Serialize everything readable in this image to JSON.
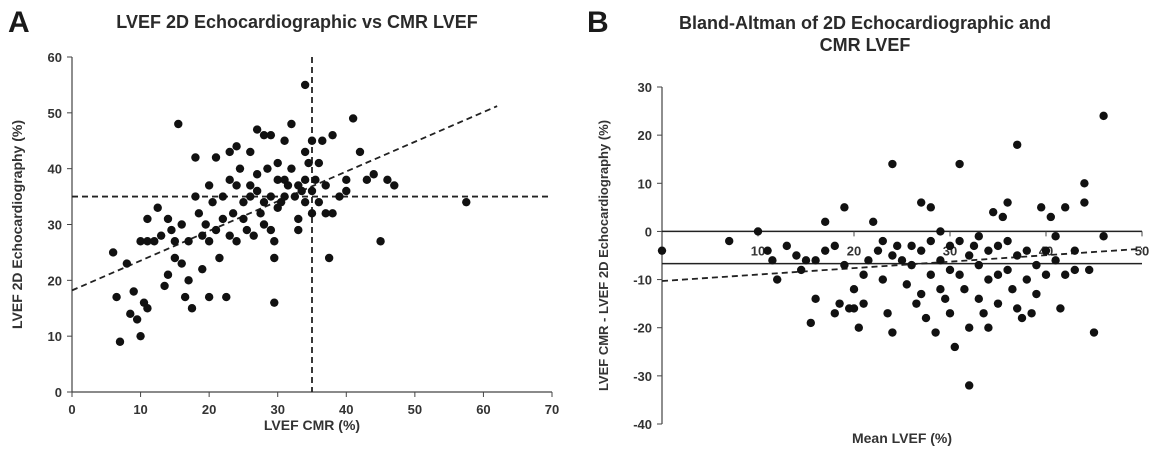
{
  "chart_data": [
    {
      "type": "scatter",
      "panel_label": "A",
      "title": "LVEF 2D Echocardiographic vs CMR LVEF",
      "xlabel": "LVEF CMR (%)",
      "ylabel": "LVEF 2D Echocardiography (%)",
      "xlim": [
        0,
        70
      ],
      "ylim": [
        0,
        60
      ],
      "xticks": [
        0,
        10,
        20,
        30,
        40,
        50,
        60,
        70
      ],
      "yticks": [
        0,
        10,
        20,
        30,
        40,
        50,
        60
      ],
      "grid": false,
      "reference_lines": [
        {
          "type": "vertical",
          "x": 35,
          "style": "dashed"
        },
        {
          "type": "horizontal",
          "y": 35,
          "style": "dashed"
        }
      ],
      "trendline": {
        "x1": 0,
        "y1": 18.2,
        "x2": 62,
        "y2": 51.2,
        "style": "dashed"
      },
      "series": [
        {
          "points": [
            [
              6,
              25
            ],
            [
              6.5,
              17
            ],
            [
              7,
              9
            ],
            [
              8,
              23
            ],
            [
              8.5,
              14
            ],
            [
              9,
              18
            ],
            [
              9.5,
              13
            ],
            [
              10,
              27
            ],
            [
              10,
              10
            ],
            [
              10.5,
              16
            ],
            [
              11,
              31
            ],
            [
              11,
              27
            ],
            [
              11,
              15
            ],
            [
              12,
              27
            ],
            [
              12.5,
              33
            ],
            [
              13,
              28
            ],
            [
              13.5,
              19
            ],
            [
              14,
              31
            ],
            [
              14,
              21
            ],
            [
              14.5,
              29
            ],
            [
              15,
              27
            ],
            [
              15,
              24
            ],
            [
              15.5,
              48
            ],
            [
              16,
              30
            ],
            [
              16,
              23
            ],
            [
              16.5,
              17
            ],
            [
              17,
              27
            ],
            [
              17,
              20
            ],
            [
              17.5,
              15
            ],
            [
              18,
              42
            ],
            [
              18,
              35
            ],
            [
              18.5,
              32
            ],
            [
              19,
              28
            ],
            [
              19,
              22
            ],
            [
              19.5,
              30
            ],
            [
              20,
              37
            ],
            [
              20,
              27
            ],
            [
              20,
              17
            ],
            [
              20.5,
              34
            ],
            [
              21,
              42
            ],
            [
              21,
              29
            ],
            [
              21.5,
              24
            ],
            [
              22,
              31
            ],
            [
              22,
              35
            ],
            [
              22.5,
              17
            ],
            [
              23,
              43
            ],
            [
              23,
              38
            ],
            [
              23,
              28
            ],
            [
              23.5,
              32
            ],
            [
              24,
              44
            ],
            [
              24,
              37
            ],
            [
              24,
              27
            ],
            [
              24.5,
              40
            ],
            [
              25,
              34
            ],
            [
              25,
              31
            ],
            [
              25.5,
              29
            ],
            [
              26,
              35
            ],
            [
              26,
              37
            ],
            [
              26,
              43
            ],
            [
              26.5,
              28
            ],
            [
              27,
              47
            ],
            [
              27,
              39
            ],
            [
              27,
              36
            ],
            [
              27.5,
              32
            ],
            [
              28,
              46
            ],
            [
              28,
              34
            ],
            [
              28,
              30
            ],
            [
              28.5,
              40
            ],
            [
              29,
              46
            ],
            [
              29,
              35
            ],
            [
              29,
              29
            ],
            [
              29.5,
              27
            ],
            [
              29.5,
              24
            ],
            [
              29.5,
              16
            ],
            [
              30,
              41
            ],
            [
              30,
              38
            ],
            [
              30,
              33
            ],
            [
              30.5,
              34
            ],
            [
              31,
              35
            ],
            [
              31,
              38
            ],
            [
              31,
              45
            ],
            [
              31.5,
              37
            ],
            [
              32,
              48
            ],
            [
              32,
              40
            ],
            [
              32.5,
              35
            ],
            [
              33,
              37
            ],
            [
              33,
              31
            ],
            [
              33,
              29
            ],
            [
              33.5,
              36
            ],
            [
              34,
              43
            ],
            [
              34,
              38
            ],
            [
              34,
              34
            ],
            [
              34,
              55
            ],
            [
              34.5,
              41
            ],
            [
              35,
              45
            ],
            [
              35,
              36
            ],
            [
              35,
              32
            ],
            [
              35.5,
              38
            ],
            [
              36,
              41
            ],
            [
              36,
              34
            ],
            [
              36.5,
              45
            ],
            [
              37,
              37
            ],
            [
              37,
              32
            ],
            [
              37.5,
              24
            ],
            [
              38,
              46
            ],
            [
              38,
              32
            ],
            [
              39,
              35
            ],
            [
              40,
              36
            ],
            [
              40,
              38
            ],
            [
              41,
              49
            ],
            [
              42,
              43
            ],
            [
              43,
              38
            ],
            [
              44,
              39
            ],
            [
              45,
              27
            ],
            [
              46,
              38
            ],
            [
              47,
              37
            ],
            [
              57.5,
              34
            ]
          ]
        }
      ]
    },
    {
      "type": "scatter",
      "panel_label": "B",
      "title": "Bland-Altman of 2D Echocardiographic and CMR LVEF",
      "xlabel": "Mean LVEF (%)",
      "ylabel": "LVEF CMR - LVEF 2D Echocardiography (%)",
      "xlim": [
        0,
        50
      ],
      "ylim": [
        -40,
        30
      ],
      "xticks": [
        10,
        20,
        30,
        40,
        50
      ],
      "yticks": [
        30,
        20,
        10,
        0,
        -10,
        -20,
        -30,
        -40
      ],
      "grid": false,
      "reference_lines": [
        {
          "type": "horizontal",
          "y": 0,
          "style": "solid"
        },
        {
          "type": "horizontal",
          "y": -6.7,
          "style": "solid"
        }
      ],
      "trendline": {
        "x1": 0,
        "y1": -10.3,
        "x2": 50,
        "y2": -3.6,
        "style": "dashed"
      },
      "series": [
        {
          "points": [
            [
              0,
              -4
            ],
            [
              7,
              -2
            ],
            [
              10,
              0
            ],
            [
              11,
              -4
            ],
            [
              11.5,
              -6
            ],
            [
              12,
              -10
            ],
            [
              13,
              -3
            ],
            [
              14,
              -5
            ],
            [
              14.5,
              -8
            ],
            [
              15,
              -6
            ],
            [
              15.5,
              -19
            ],
            [
              16,
              -14
            ],
            [
              16,
              -6
            ],
            [
              17,
              2
            ],
            [
              17,
              -4
            ],
            [
              18,
              -3
            ],
            [
              18,
              -17
            ],
            [
              18.5,
              -15
            ],
            [
              19,
              5
            ],
            [
              19,
              -7
            ],
            [
              19.5,
              -16
            ],
            [
              20,
              -12
            ],
            [
              20,
              -16
            ],
            [
              20.5,
              -20
            ],
            [
              21,
              -9
            ],
            [
              21,
              -15
            ],
            [
              21.5,
              -6
            ],
            [
              22,
              2
            ],
            [
              22.5,
              -4
            ],
            [
              23,
              -2
            ],
            [
              23,
              -10
            ],
            [
              23.5,
              -17
            ],
            [
              24,
              14
            ],
            [
              24,
              -5
            ],
            [
              24,
              -21
            ],
            [
              24.5,
              -3
            ],
            [
              25,
              -6
            ],
            [
              25.5,
              -11
            ],
            [
              26,
              -3
            ],
            [
              26,
              -7
            ],
            [
              26.5,
              -15
            ],
            [
              27,
              6
            ],
            [
              27,
              -4
            ],
            [
              27,
              -13
            ],
            [
              27.5,
              -18
            ],
            [
              28,
              5
            ],
            [
              28,
              -2
            ],
            [
              28,
              -9
            ],
            [
              28.5,
              -21
            ],
            [
              29,
              0
            ],
            [
              29,
              -6
            ],
            [
              29,
              -12
            ],
            [
              29.5,
              -14
            ],
            [
              30,
              -3
            ],
            [
              30,
              -8
            ],
            [
              30,
              -17
            ],
            [
              30.5,
              -24
            ],
            [
              31,
              14
            ],
            [
              31,
              -2
            ],
            [
              31,
              -9
            ],
            [
              31.5,
              -12
            ],
            [
              32,
              -32
            ],
            [
              32,
              -5
            ],
            [
              32,
              -20
            ],
            [
              32.5,
              -3
            ],
            [
              33,
              -1
            ],
            [
              33,
              -7
            ],
            [
              33,
              -14
            ],
            [
              33.5,
              -17
            ],
            [
              34,
              -4
            ],
            [
              34,
              -10
            ],
            [
              34,
              -20
            ],
            [
              34.5,
              4
            ],
            [
              35,
              -3
            ],
            [
              35,
              -9
            ],
            [
              35,
              -15
            ],
            [
              35.5,
              3
            ],
            [
              36,
              6
            ],
            [
              36,
              -2
            ],
            [
              36,
              -8
            ],
            [
              36.5,
              -12
            ],
            [
              37,
              18
            ],
            [
              37,
              -5
            ],
            [
              37,
              -16
            ],
            [
              37.5,
              -18
            ],
            [
              38,
              -4
            ],
            [
              38,
              -10
            ],
            [
              38.5,
              -17
            ],
            [
              39,
              -7
            ],
            [
              39,
              -13
            ],
            [
              39.5,
              5
            ],
            [
              40,
              -4
            ],
            [
              40,
              -9
            ],
            [
              40.5,
              3
            ],
            [
              41,
              -1
            ],
            [
              41,
              -6
            ],
            [
              41.5,
              -16
            ],
            [
              42,
              5
            ],
            [
              42,
              -9
            ],
            [
              43,
              -4
            ],
            [
              43,
              -8
            ],
            [
              44,
              10
            ],
            [
              44,
              6
            ],
            [
              44.5,
              -8
            ],
            [
              45,
              -21
            ],
            [
              46,
              24
            ],
            [
              46,
              -1
            ]
          ]
        }
      ]
    }
  ]
}
